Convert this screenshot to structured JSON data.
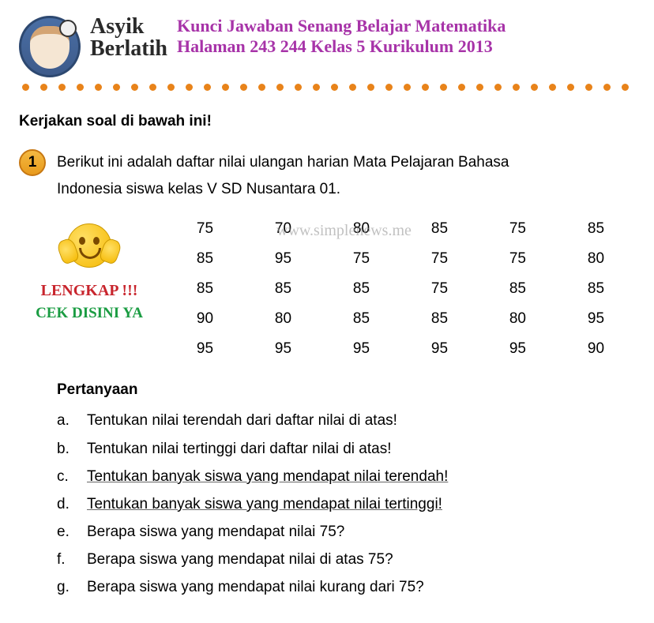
{
  "header": {
    "asyik": "Asyik",
    "berlatih": "Berlatih",
    "purple_line1": "Kunci Jawaban Senang Belajar Matematika",
    "purple_line2": "Halaman 243 244 Kelas 5 Kurikulum 2013"
  },
  "instruction": "Kerjakan soal di bawah ini!",
  "question_number": "1",
  "question_text_line1": "Berikut ini adalah daftar nilai ulangan harian Mata Pelajaran Bahasa",
  "question_text_line2": "Indonesia siswa kelas V SD Nusantara 01.",
  "badges": {
    "lengkap": "LENGKAP !!!",
    "cek": "CEK DISINI YA"
  },
  "watermark": "www.simplenews.me",
  "data_table": {
    "rows": [
      [
        75,
        70,
        80,
        85,
        75,
        85
      ],
      [
        85,
        95,
        75,
        75,
        75,
        80
      ],
      [
        85,
        85,
        85,
        75,
        85,
        85
      ],
      [
        90,
        80,
        85,
        85,
        80,
        95
      ],
      [
        95,
        95,
        95,
        95,
        95,
        90
      ]
    ]
  },
  "pertanyaan_header": "Pertanyaan",
  "sub_questions": [
    {
      "letter": "a.",
      "text": "Tentukan nilai terendah dari daftar nilai di atas!"
    },
    {
      "letter": "b.",
      "text": "Tentukan nilai tertinggi dari daftar nilai di atas!"
    },
    {
      "letter": "c.",
      "text": "Tentukan banyak siswa yang mendapat nilai terendah!"
    },
    {
      "letter": "d.",
      "text": "Tentukan banyak siswa yang mendapat nilai tertinggi!"
    },
    {
      "letter": "e.",
      "text": "Berapa siswa yang mendapat nilai 75?"
    },
    {
      "letter": "f.",
      "text": "Berapa siswa yang mendapat nilai di atas 75?"
    },
    {
      "letter": "g.",
      "text": "Berapa siswa yang mendapat nilai kurang dari 75?"
    }
  ],
  "colors": {
    "purple": "#a733a8",
    "orange_dot": "#e8831a",
    "red_badge": "#c8252d",
    "green_badge": "#1a9c42",
    "circle_bg": "#f4b942"
  },
  "dots_count": 34,
  "underlined_indices": [
    2,
    3
  ]
}
